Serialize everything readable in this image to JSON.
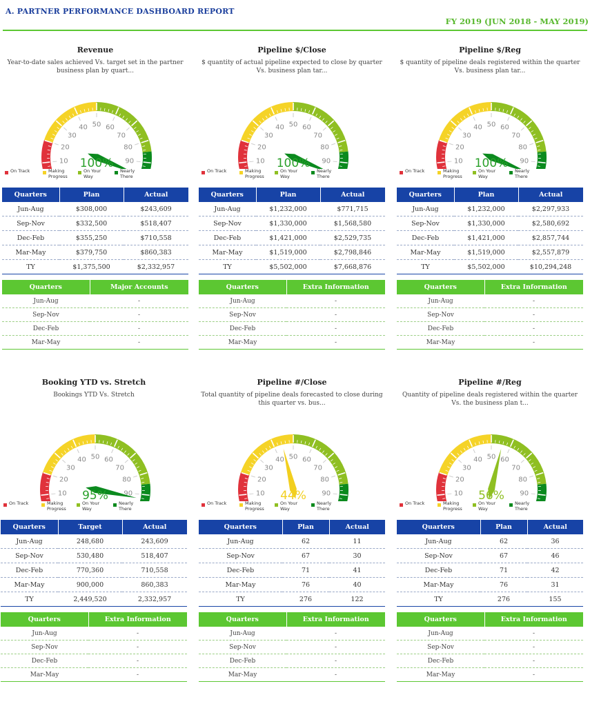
{
  "header": {
    "title": "A. PARTNER PERFORMANCE DASHBOARD REPORT",
    "fiscal_year": "FY 2019 (JUN 2018 - MAY 2019)"
  },
  "legend": {
    "on_track": "On Track",
    "making_progress": "Making Progress",
    "on_your_way": "On Your Way",
    "nearly_there": "Nearly There"
  },
  "colors": {
    "red": "#e0323b",
    "yellow": "#f5d327",
    "lightgreen": "#8fbf22",
    "green": "#0b8a1e",
    "blue_header": "#1743a6",
    "green_header": "#5cc732"
  },
  "gauge_ticks": [
    "0",
    "10",
    "20",
    "30",
    "40",
    "50",
    "60",
    "70",
    "80",
    "90",
    "100"
  ],
  "panels": [
    {
      "title": "Revenue",
      "description": "Year-to-date sales achieved Vs. target set in the partner business plan by quart...",
      "gauge": {
        "value": 100,
        "label": "100%",
        "color": "#2aa02a",
        "needle_color": "#0b8a1e"
      },
      "plan_table": {
        "headers": [
          "Quarters",
          "Plan",
          "Actual"
        ],
        "rows": [
          [
            "Jun-Aug",
            "$308,000",
            "$243,609"
          ],
          [
            "Sep-Nov",
            "$332,500",
            "$518,407"
          ],
          [
            "Dec-Feb",
            "$355,250",
            "$710,558"
          ],
          [
            "Mar-May",
            "$379,750",
            "$860,383"
          ],
          [
            "TY",
            "$1,375,500",
            "$2,332,957"
          ]
        ]
      },
      "info_table": {
        "headers": [
          "Quarters",
          "Major Accounts"
        ],
        "rows": [
          [
            "Jun-Aug",
            "-"
          ],
          [
            "Sep-Nov",
            "-"
          ],
          [
            "Dec-Feb",
            "-"
          ],
          [
            "Mar-May",
            "-"
          ]
        ]
      }
    },
    {
      "title": "Pipeline $/Close",
      "description": "$ quantity of actual pipeline expected to close by quarter Vs. business plan tar...",
      "gauge": {
        "value": 100,
        "label": "100%",
        "color": "#2aa02a",
        "needle_color": "#0b8a1e"
      },
      "plan_table": {
        "headers": [
          "Quarters",
          "Plan",
          "Actual"
        ],
        "rows": [
          [
            "Jun-Aug",
            "$1,232,000",
            "$771,715"
          ],
          [
            "Sep-Nov",
            "$1,330,000",
            "$1,568,580"
          ],
          [
            "Dec-Feb",
            "$1,421,000",
            "$2,529,735"
          ],
          [
            "Mar-May",
            "$1,519,000",
            "$2,798,846"
          ],
          [
            "TY",
            "$5,502,000",
            "$7,668,876"
          ]
        ]
      },
      "info_table": {
        "headers": [
          "Quarters",
          "Extra Information"
        ],
        "rows": [
          [
            "Jun-Aug",
            "-"
          ],
          [
            "Sep-Nov",
            "-"
          ],
          [
            "Dec-Feb",
            "-"
          ],
          [
            "Mar-May",
            "-"
          ]
        ]
      }
    },
    {
      "title": "Pipeline $/Reg",
      "description": "$ quantity of pipeline deals registered within the quarter Vs. business plan tar...",
      "gauge": {
        "value": 100,
        "label": "100%",
        "color": "#2aa02a",
        "needle_color": "#0b8a1e"
      },
      "plan_table": {
        "headers": [
          "Quarters",
          "Plan",
          "Actual"
        ],
        "rows": [
          [
            "Jun-Aug",
            "$1,232,000",
            "$2,297,933"
          ],
          [
            "Sep-Nov",
            "$1,330,000",
            "$2,580,692"
          ],
          [
            "Dec-Feb",
            "$1,421,000",
            "$2,857,744"
          ],
          [
            "Mar-May",
            "$1,519,000",
            "$2,557,879"
          ],
          [
            "TY",
            "$5,502,000",
            "$10,294,248"
          ]
        ]
      },
      "info_table": {
        "headers": [
          "Quarters",
          "Extra Information"
        ],
        "rows": [
          [
            "Jun-Aug",
            "-"
          ],
          [
            "Sep-Nov",
            "-"
          ],
          [
            "Dec-Feb",
            "-"
          ],
          [
            "Mar-May",
            "-"
          ]
        ]
      }
    },
    {
      "title": "Booking YTD vs. Stretch",
      "description": "Bookings YTD Vs. Stretch",
      "gauge": {
        "value": 95,
        "label": "95%",
        "color": "#2aa02a",
        "needle_color": "#0b8a1e"
      },
      "plan_table": {
        "headers": [
          "Quarters",
          "Target",
          "Actual"
        ],
        "rows": [
          [
            "Jun-Aug",
            "248,680",
            "243,609"
          ],
          [
            "Sep-Nov",
            "530,480",
            "518,407"
          ],
          [
            "Dec-Feb",
            "770,360",
            "710,558"
          ],
          [
            "Mar-May",
            "900,000",
            "860,383"
          ],
          [
            "TY",
            "2,449,520",
            "2,332,957"
          ]
        ]
      },
      "info_table": {
        "headers": [
          "Quarters",
          "Extra Information"
        ],
        "rows": [
          [
            "Jun-Aug",
            "-"
          ],
          [
            "Sep-Nov",
            "-"
          ],
          [
            "Dec-Feb",
            "-"
          ],
          [
            "Mar-May",
            "-"
          ]
        ]
      }
    },
    {
      "title": "Pipeline #/Close",
      "description": "Total quantity of pipeline deals forecasted to close during this quarter vs. bus...",
      "gauge": {
        "value": 44,
        "label": "44%",
        "color": "#f2cf1f",
        "needle_color": "#f2cf1f"
      },
      "plan_table": {
        "headers": [
          "Quarters",
          "Plan",
          "Actual"
        ],
        "rows": [
          [
            "Jun-Aug",
            "62",
            "11"
          ],
          [
            "Sep-Nov",
            "67",
            "30"
          ],
          [
            "Dec-Feb",
            "71",
            "41"
          ],
          [
            "Mar-May",
            "76",
            "40"
          ],
          [
            "TY",
            "276",
            "122"
          ]
        ]
      },
      "info_table": {
        "headers": [
          "Quarters",
          "Extra Information"
        ],
        "rows": [
          [
            "Jun-Aug",
            "-"
          ],
          [
            "Sep-Nov",
            "-"
          ],
          [
            "Dec-Feb",
            "-"
          ],
          [
            "Mar-May",
            "-"
          ]
        ]
      }
    },
    {
      "title": "Pipeline #/Reg",
      "description": "Quantity of pipeline deals registered within the quarter Vs. the business plan t...",
      "gauge": {
        "value": 56,
        "label": "56%",
        "color": "#8fbf22",
        "needle_color": "#8fbf22"
      },
      "plan_table": {
        "headers": [
          "Quarters",
          "Plan",
          "Actual"
        ],
        "rows": [
          [
            "Jun-Aug",
            "62",
            "36"
          ],
          [
            "Sep-Nov",
            "67",
            "46"
          ],
          [
            "Dec-Feb",
            "71",
            "42"
          ],
          [
            "Mar-May",
            "76",
            "31"
          ],
          [
            "TY",
            "276",
            "155"
          ]
        ]
      },
      "info_table": {
        "headers": [
          "Quarters",
          "Extra Information"
        ],
        "rows": [
          [
            "Jun-Aug",
            "-"
          ],
          [
            "Sep-Nov",
            "-"
          ],
          [
            "Dec-Feb",
            "-"
          ],
          [
            "Mar-May",
            "-"
          ]
        ]
      }
    }
  ]
}
